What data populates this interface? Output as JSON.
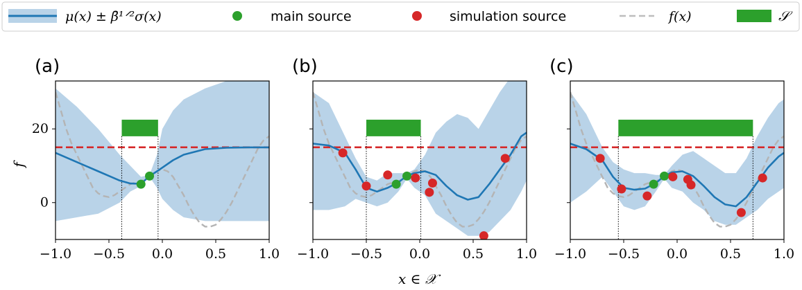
{
  "legend": {
    "items": [
      {
        "kind": "gp",
        "label": "μ(x) ± β̄¹ᐟ²σ(x)"
      },
      {
        "kind": "main",
        "label": "main source"
      },
      {
        "kind": "sim",
        "label": "simulation source"
      },
      {
        "kind": "f",
        "label": "f(x)"
      },
      {
        "kind": "set",
        "label": "𝒮"
      }
    ]
  },
  "colors": {
    "mean": "#1f77b4",
    "band": "#b9d3e8",
    "main": "#2ca02c",
    "sim": "#d62728",
    "f": "#b4b4b4",
    "threshold": "#d62728",
    "set": "#2ca02c"
  },
  "axes": {
    "xlabel": "x ∈ 𝒳",
    "ylabel": "f",
    "xlim": [
      -1.0,
      1.0
    ],
    "ylim": [
      -10,
      33
    ],
    "xticks": [
      -1.0,
      -0.5,
      0.0,
      0.5,
      1.0
    ],
    "xtick_labels": [
      "−1.0",
      "−0.5",
      "0.0",
      "0.5",
      "1.0"
    ],
    "yticks": [
      0,
      20
    ],
    "ytick_labels": [
      "0",
      "20"
    ]
  },
  "chart_data": [
    {
      "type": "line",
      "panel": "(a)",
      "threshold": 15,
      "set_interval": [
        -0.38,
        -0.04
      ],
      "mean": {
        "x": [
          -1.0,
          -0.8,
          -0.6,
          -0.4,
          -0.3,
          -0.2,
          -0.12,
          -0.05,
          0.0,
          0.1,
          0.2,
          0.4,
          0.6,
          0.8,
          1.0
        ],
        "y": [
          13.5,
          11,
          8.5,
          6,
          5.2,
          5.1,
          7.2,
          8.5,
          9.5,
          11.5,
          13,
          14.5,
          14.9,
          15,
          15
        ]
      },
      "band_upper": [
        31,
        26,
        20,
        13,
        10,
        7,
        7.5,
        13,
        20,
        25,
        28,
        31,
        33,
        33,
        33
      ],
      "band_lower": [
        -5,
        -4,
        -3,
        0,
        3,
        4.5,
        7,
        4,
        1,
        -2,
        -4,
        -5,
        -5,
        -5,
        -5
      ],
      "main_points": {
        "x": [
          -0.2,
          -0.12
        ],
        "y": [
          5,
          7.2
        ]
      },
      "sim_points": {
        "x": [],
        "y": []
      }
    },
    {
      "type": "line",
      "panel": "(b)",
      "threshold": 15,
      "set_interval": [
        -0.5,
        0.01
      ],
      "mean": {
        "x": [
          -1.0,
          -0.85,
          -0.7,
          -0.6,
          -0.5,
          -0.4,
          -0.3,
          -0.2,
          -0.12,
          -0.05,
          0.05,
          0.15,
          0.25,
          0.35,
          0.45,
          0.55,
          0.65,
          0.75,
          0.85,
          0.95,
          1.0
        ],
        "y": [
          16,
          15.5,
          13.5,
          9,
          4,
          3,
          4,
          5.5,
          7.3,
          8,
          8.5,
          7.5,
          4.5,
          2,
          0.8,
          1.5,
          5,
          9,
          13,
          18,
          19
        ]
      },
      "band_upper": [
        30,
        27,
        18,
        12,
        7,
        6,
        8,
        8,
        8,
        9,
        13,
        19,
        22,
        24,
        23,
        20,
        25,
        30,
        34,
        34,
        33
      ],
      "band_lower": [
        -2,
        -2,
        -1,
        1,
        0,
        -1,
        0,
        3,
        6.5,
        4,
        2,
        -3,
        -5,
        -7,
        -9,
        -9,
        -8,
        -5,
        -2,
        3,
        6
      ],
      "main_points": {
        "x": [
          -0.22,
          -0.12
        ],
        "y": [
          5,
          7.2
        ]
      },
      "sim_points": {
        "x": [
          -0.72,
          -0.5,
          -0.3,
          -0.04,
          0.09,
          0.12,
          0.6,
          0.8
        ],
        "y": [
          13.5,
          4.5,
          7.5,
          6.7,
          2.8,
          5.3,
          -9,
          12
        ]
      }
    },
    {
      "type": "line",
      "panel": "(c)",
      "threshold": 15,
      "set_interval": [
        -0.55,
        0.71
      ],
      "mean": {
        "x": [
          -1.0,
          -0.85,
          -0.7,
          -0.6,
          -0.5,
          -0.4,
          -0.3,
          -0.2,
          -0.12,
          -0.05,
          0.05,
          0.15,
          0.25,
          0.35,
          0.45,
          0.55,
          0.65,
          0.75,
          0.85,
          0.95,
          1.0
        ],
        "y": [
          16,
          14.5,
          11.5,
          7,
          4,
          3.5,
          3.8,
          5.3,
          7.2,
          8.2,
          8.5,
          7.2,
          4.5,
          1.5,
          -0.5,
          -1,
          1.5,
          5.5,
          9.5,
          12.5,
          13.5
        ]
      },
      "band_upper": [
        30,
        24,
        15,
        11,
        9,
        8,
        8,
        7.5,
        7.5,
        10,
        13,
        14,
        12,
        10,
        8,
        8,
        12,
        18,
        23,
        27,
        28
      ],
      "band_lower": [
        0,
        3,
        7,
        3,
        -1,
        -2,
        -1,
        3,
        6.5,
        4,
        3,
        0,
        -2,
        -5,
        -6,
        -6,
        -4,
        -2,
        1,
        3,
        4
      ],
      "main_points": {
        "x": [
          -0.22,
          -0.12
        ],
        "y": [
          5,
          7.2
        ]
      },
      "sim_points": {
        "x": [
          -0.72,
          -0.52,
          -0.28,
          -0.04,
          0.1,
          0.13,
          0.6,
          0.8
        ],
        "y": [
          12,
          3.7,
          1.8,
          7,
          6.3,
          4.8,
          -2.7,
          6.7
        ]
      }
    }
  ],
  "f_curve": {
    "x": [
      -1.0,
      -0.95,
      -0.9,
      -0.85,
      -0.8,
      -0.75,
      -0.7,
      -0.65,
      -0.6,
      -0.55,
      -0.5,
      -0.45,
      -0.4,
      -0.35,
      -0.3,
      -0.25,
      -0.2,
      -0.15,
      -0.1,
      -0.05,
      0.0,
      0.05,
      0.1,
      0.15,
      0.2,
      0.25,
      0.3,
      0.35,
      0.4,
      0.45,
      0.5,
      0.55,
      0.6,
      0.65,
      0.7,
      0.75,
      0.8,
      0.85,
      0.9,
      0.95,
      1.0
    ],
    "y": [
      30,
      25,
      20,
      16,
      13,
      10,
      7,
      4,
      2.5,
      1.8,
      1.5,
      2,
      3,
      4,
      5,
      5.5,
      5.8,
      6.5,
      7.5,
      8.5,
      9,
      8.5,
      7,
      4.5,
      2,
      -1,
      -3.5,
      -5.5,
      -6.5,
      -6.5,
      -6,
      -4.5,
      -2.5,
      0,
      3,
      6,
      9,
      12,
      15,
      17,
      18
    ]
  }
}
